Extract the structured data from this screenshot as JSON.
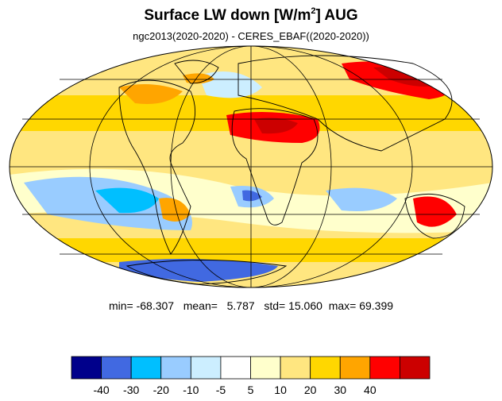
{
  "title_main": "Surface LW down [W/m",
  "title_sup": "2",
  "title_tail": "]  AUG",
  "subtitle": "ngc2013(2020-2020) - CERES_EBAF((2020-2020))",
  "stats": {
    "min_label": "min=",
    "min": "-68.307",
    "mean_label": "mean=",
    "mean": "5.787",
    "std_label": "std=",
    "std": "15.060",
    "max_label": "max=",
    "max": "69.399"
  },
  "colorbar": {
    "colors": [
      "#00008b",
      "#4169e1",
      "#00bfff",
      "#99ccff",
      "#cceeff",
      "#ffffff",
      "#ffffcc",
      "#ffe680",
      "#ffd700",
      "#ffa500",
      "#ff0000",
      "#cc0000"
    ],
    "labels": [
      "-40",
      "-30",
      "-20",
      "-10",
      "-5",
      "5",
      "10",
      "20",
      "30",
      "40"
    ]
  },
  "map": {
    "projection": "mollweide",
    "field_colors": [
      "#ffd700",
      "#ffa500",
      "#ff0000",
      "#cc0000",
      "#ffe680",
      "#ffffcc",
      "#cceeff",
      "#99ccff",
      "#00bfff",
      "#4169e1"
    ]
  }
}
